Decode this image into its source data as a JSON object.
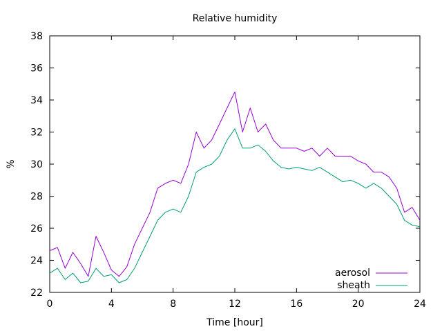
{
  "chart_data": {
    "type": "line",
    "title": "Relative humidity",
    "xlabel": "Time [hour]",
    "ylabel": "%",
    "xlim": [
      0,
      24
    ],
    "ylim": [
      22,
      38
    ],
    "xticks": [
      0,
      4,
      8,
      12,
      16,
      20,
      24
    ],
    "yticks": [
      22,
      24,
      26,
      28,
      30,
      32,
      34,
      36,
      38
    ],
    "grid": false,
    "legend_position": "bottom-right",
    "x": [
      0,
      0.5,
      1,
      1.5,
      2,
      2.5,
      3,
      3.5,
      4,
      4.5,
      5,
      5.5,
      6,
      6.5,
      7,
      7.5,
      8,
      8.5,
      9,
      9.5,
      10,
      10.5,
      11,
      11.5,
      12,
      12.5,
      13,
      13.5,
      14,
      14.5,
      15,
      15.5,
      16,
      16.5,
      17,
      17.5,
      18,
      18.5,
      19,
      19.5,
      20,
      20.5,
      21,
      21.5,
      22,
      22.5,
      23,
      23.5,
      24
    ],
    "series": [
      {
        "name": "aerosol",
        "color": "#9400d3",
        "values": [
          24.6,
          24.8,
          23.5,
          24.5,
          23.8,
          23.0,
          25.5,
          24.5,
          23.4,
          23.0,
          23.6,
          25.0,
          26.0,
          27.0,
          28.5,
          28.8,
          29.0,
          28.8,
          30.0,
          32.0,
          31.0,
          31.5,
          32.5,
          33.5,
          34.5,
          32.0,
          33.5,
          32.0,
          32.5,
          31.5,
          31.0,
          31.0,
          31.0,
          30.8,
          31.0,
          30.5,
          31.0,
          30.5,
          30.5,
          30.5,
          30.2,
          30.0,
          29.5,
          29.5,
          29.2,
          28.5,
          27.0,
          27.3,
          26.5
        ]
      },
      {
        "name": "sheath",
        "color": "#009e73",
        "values": [
          23.2,
          23.5,
          22.8,
          23.2,
          22.6,
          22.7,
          23.5,
          23.0,
          23.1,
          22.6,
          22.8,
          23.5,
          24.5,
          25.5,
          26.5,
          27.0,
          27.2,
          27.0,
          28.0,
          29.5,
          29.8,
          30.0,
          30.5,
          31.5,
          32.2,
          31.0,
          31.0,
          31.2,
          30.8,
          30.2,
          29.8,
          29.7,
          29.8,
          29.7,
          29.6,
          29.8,
          29.5,
          29.2,
          28.9,
          29.0,
          28.8,
          28.5,
          28.8,
          28.5,
          28.0,
          27.5,
          26.5,
          26.2,
          26.1
        ]
      }
    ]
  }
}
